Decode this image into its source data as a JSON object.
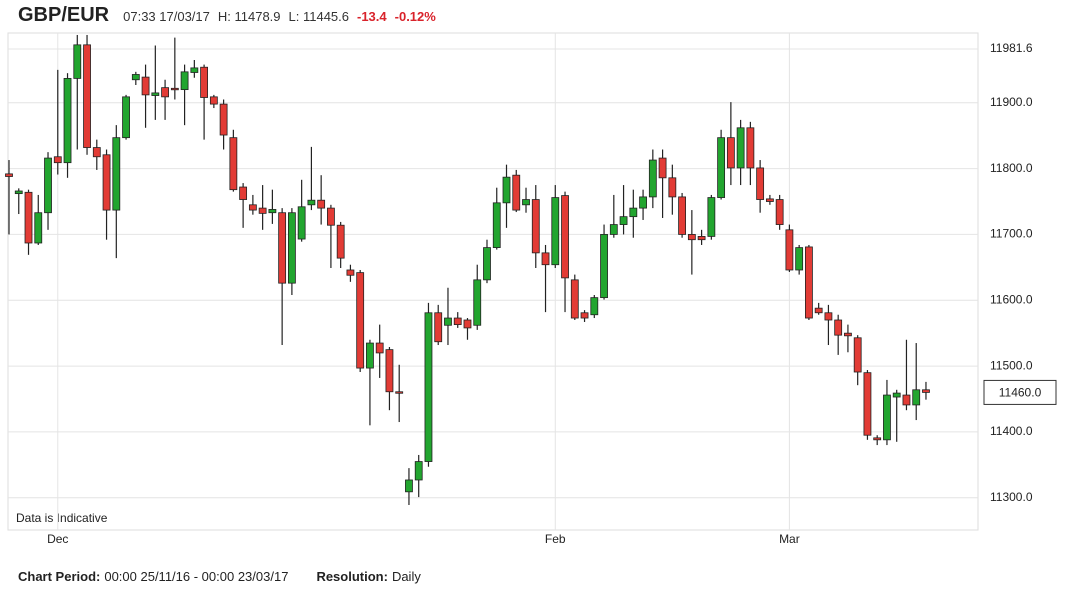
{
  "header": {
    "symbol": "GBP/EUR",
    "time": "07:33 17/03/17",
    "high": "H: 11478.9",
    "low": "L: 11445.6",
    "change": "-13.4",
    "change_pct": "-0.12%"
  },
  "footer": {
    "period_label": "Chart Period:",
    "period": "00:00 25/11/16 - 00:00 23/03/17",
    "resolution_label": "Resolution:",
    "resolution": "Daily"
  },
  "chart_data": {
    "type": "candlestick",
    "note": "Data is Indicative",
    "categories": [
      null,
      null,
      null,
      null,
      null,
      "Dec",
      null,
      null,
      null,
      null,
      null,
      null,
      null,
      null,
      null,
      null,
      null,
      null,
      null,
      null,
      null,
      null,
      null,
      null,
      null,
      null,
      null,
      null,
      null,
      null,
      null,
      null,
      null,
      null,
      null,
      null,
      null,
      null,
      null,
      null,
      null,
      null,
      null,
      null,
      null,
      null,
      null,
      null,
      null,
      null,
      null,
      null,
      null,
      null,
      null,
      null,
      "Feb",
      null,
      null,
      null,
      null,
      null,
      null,
      null,
      null,
      null,
      null,
      null,
      null,
      null,
      null,
      null,
      null,
      null,
      null,
      null,
      null,
      null,
      null,
      null,
      "Mar",
      null,
      null,
      null,
      null,
      null,
      null,
      null,
      null,
      null,
      null,
      null,
      null,
      null,
      null
    ],
    "open": [
      11792,
      11762,
      11764,
      11687,
      11733,
      11818,
      11809,
      11937,
      11988,
      11832,
      11821,
      11737,
      11847,
      11935,
      11939,
      11911,
      11923,
      11922,
      11920,
      11946,
      11954,
      11909,
      11898,
      11847,
      11772,
      11745,
      11740,
      11733,
      11733,
      11626,
      11693,
      11745,
      11752,
      11740,
      11714,
      11646,
      11642,
      11497,
      11535,
      11525,
      11461,
      11309,
      11327,
      11355,
      11581,
      11562,
      11573,
      11570,
      11562,
      11631,
      11680,
      11748,
      11790,
      11745,
      11753,
      11672,
      11654,
      11759,
      11631,
      11581,
      11578,
      11604,
      11700,
      11715,
      11727,
      11740,
      11757,
      11816,
      11786,
      11757,
      11700,
      11697,
      11697,
      11756,
      11847,
      11801,
      11862,
      11801,
      11754,
      11753,
      11707,
      11646,
      11681,
      11588,
      11581,
      11570,
      11550,
      11543,
      11490,
      11391,
      11388,
      11453,
      11456,
      11441,
      11464
    ],
    "high": [
      11813,
      11770,
      11768,
      11760,
      11825,
      11950,
      11945,
      12003,
      12003,
      11844,
      11829,
      11866,
      11912,
      11947,
      11958,
      11987,
      11935,
      11999,
      11958,
      11965,
      11958,
      11912,
      11905,
      11859,
      11778,
      11760,
      11775,
      11768,
      11740,
      11740,
      11783,
      11833,
      11790,
      11745,
      11719,
      11654,
      11646,
      11540,
      11563,
      11529,
      11502,
      11345,
      11365,
      11596,
      11593,
      11619,
      11582,
      11573,
      11654,
      11692,
      11771,
      11806,
      11798,
      11771,
      11775,
      11684,
      11775,
      11765,
      11639,
      11585,
      11608,
      11715,
      11760,
      11775,
      11768,
      11768,
      11829,
      11829,
      11806,
      11763,
      11737,
      11707,
      11760,
      11859,
      11901,
      11874,
      11871,
      11813,
      11760,
      11760,
      11715,
      11684,
      11684,
      11596,
      11593,
      11578,
      11563,
      11547,
      11494,
      11395,
      11479,
      11464,
      11540,
      11535,
      11476
    ],
    "low": [
      11700,
      11731,
      11669,
      11684,
      11707,
      11791,
      11786,
      11829,
      11821,
      11798,
      11692,
      11664,
      11844,
      11927,
      11862,
      11874,
      11874,
      11905,
      11866,
      11938,
      11844,
      11892,
      11829,
      11765,
      11710,
      11730,
      11707,
      11716,
      11532,
      11608,
      11689,
      11737,
      11715,
      11649,
      11649,
      11628,
      11491,
      11410,
      11482,
      11433,
      11415,
      11289,
      11301,
      11347,
      11532,
      11532,
      11558,
      11540,
      11555,
      11626,
      11677,
      11710,
      11734,
      11733,
      11649,
      11582,
      11649,
      11582,
      11570,
      11567,
      11573,
      11601,
      11695,
      11700,
      11695,
      11722,
      11740,
      11725,
      11730,
      11695,
      11639,
      11684,
      11692,
      11753,
      11775,
      11775,
      11775,
      11733,
      11745,
      11707,
      11643,
      11639,
      11570,
      11578,
      11532,
      11517,
      11521,
      11471,
      11388,
      11380,
      11380,
      11385,
      11433,
      11418,
      11449
    ],
    "close": [
      11788,
      11766,
      11687,
      11733,
      11816,
      11809,
      11937,
      11988,
      11832,
      11818,
      11737,
      11847,
      11909,
      11943,
      11912,
      11915,
      11909,
      11920,
      11947,
      11953,
      11908,
      11898,
      11851,
      11768,
      11753,
      11737,
      11732,
      11738,
      11626,
      11733,
      11742,
      11752,
      11740,
      11714,
      11664,
      11638,
      11497,
      11535,
      11520,
      11461,
      11459,
      11327,
      11355,
      11581,
      11537,
      11573,
      11563,
      11558,
      11631,
      11680,
      11748,
      11787,
      11737,
      11753,
      11672,
      11654,
      11756,
      11634,
      11573,
      11573,
      11604,
      11700,
      11715,
      11727,
      11740,
      11757,
      11813,
      11786,
      11757,
      11700,
      11692,
      11692,
      11756,
      11847,
      11801,
      11862,
      11801,
      11753,
      11750,
      11715,
      11646,
      11680,
      11573,
      11581,
      11570,
      11547,
      11546,
      11491,
      11395,
      11388,
      11456,
      11459,
      11441,
      11464,
      11460
    ],
    "up_color": "#22a52f",
    "down_color": "#e23b35",
    "ylim": [
      11251,
      12006
    ],
    "yticks": [
      {
        "value": 11300,
        "label": "11300.0"
      },
      {
        "value": 11400,
        "label": "11400.0"
      },
      {
        "value": 11500,
        "label": "11500.0"
      },
      {
        "value": 11600,
        "label": "11600.0"
      },
      {
        "value": 11700,
        "label": "11700.0"
      },
      {
        "value": 11800,
        "label": "11800.0"
      },
      {
        "value": 11900,
        "label": "11900.0"
      },
      {
        "value": 11981.6,
        "label": "11981.6"
      }
    ],
    "last_price": {
      "value": 11460,
      "label": "11460.0"
    },
    "grid": true
  }
}
